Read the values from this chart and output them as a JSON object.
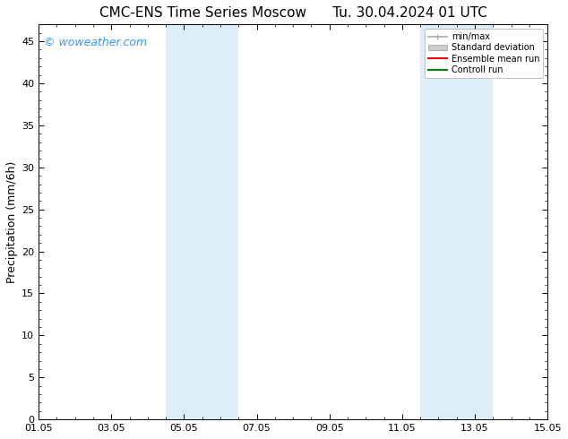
{
  "title": "CMC-ENS Time Series Moscow",
  "title2": "Tu. 30.04.2024 01 UTC",
  "ylabel": "Precipitation (mm/6h)",
  "ylim": [
    0,
    47
  ],
  "yticks": [
    0,
    5,
    10,
    15,
    20,
    25,
    30,
    35,
    40,
    45
  ],
  "xtick_labels": [
    "01.05",
    "03.05",
    "05.05",
    "07.05",
    "09.05",
    "11.05",
    "13.05",
    "15.05"
  ],
  "xtick_positions": [
    0,
    2,
    4,
    6,
    8,
    10,
    12,
    14
  ],
  "xlim": [
    0,
    14
  ],
  "shaded_bands": [
    {
      "x_start": 3.5,
      "x_end": 5.5
    },
    {
      "x_start": 10.5,
      "x_end": 12.5
    }
  ],
  "shaded_color": "#ddeef9",
  "background_color": "#ffffff",
  "watermark_text": "© woweather.com",
  "watermark_color": "#3399ff",
  "legend_items": [
    {
      "label": "min/max",
      "color": "#aaaaaa",
      "lw": 1.2
    },
    {
      "label": "Standard deviation",
      "color": "#cccccc",
      "lw": 6
    },
    {
      "label": "Ensemble mean run",
      "color": "#ff0000",
      "lw": 1.5
    },
    {
      "label": "Controll run",
      "color": "#008000",
      "lw": 1.5
    }
  ],
  "title_fontsize": 11,
  "tick_fontsize": 8,
  "ylabel_fontsize": 9,
  "watermark_fontsize": 9
}
